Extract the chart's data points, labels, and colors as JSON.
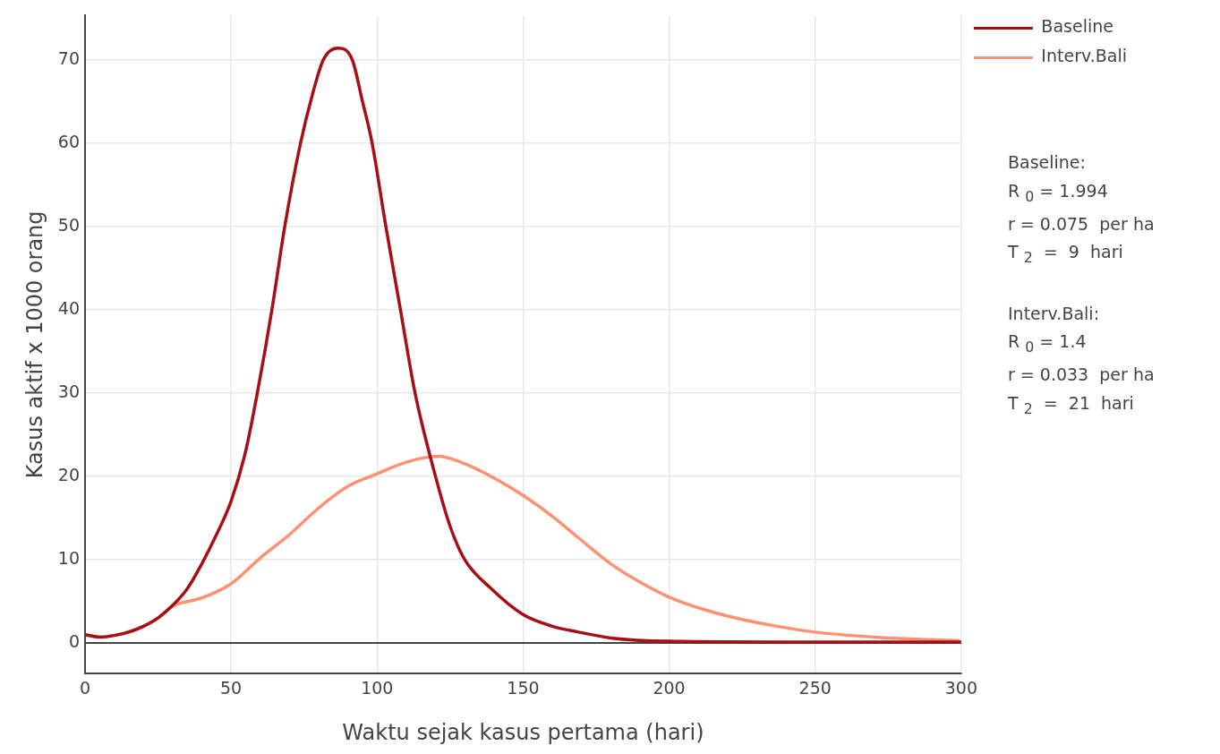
{
  "chart_data": {
    "type": "line",
    "xlabel": "Waktu sejak kasus pertama (hari)",
    "ylabel": "Kasus aktif x 1000 orang",
    "xlim": [
      0,
      300
    ],
    "xticks": [
      0,
      50,
      100,
      150,
      200,
      250,
      300
    ],
    "ylim": [
      -3.7,
      75.3
    ],
    "yticks": [
      0,
      10,
      20,
      30,
      40,
      50,
      60,
      70
    ],
    "grid": true,
    "legend": "top right",
    "marker": "none",
    "line_style": "solid",
    "series": [
      {
        "name": "Baseline",
        "color": "#a50f15",
        "x": [
          0,
          5,
          10,
          15,
          20,
          25,
          30,
          35,
          40,
          45,
          50,
          55,
          59,
          64,
          68.4,
          73.8,
          78,
          81.6,
          86.5,
          91.5,
          95,
          98.3,
          103,
          108,
          113,
          120,
          125,
          130,
          138.8,
          150,
          160,
          169,
          180,
          200,
          250,
          300
        ],
        "values": [
          1.0,
          0.7,
          0.9,
          1.3,
          2.0,
          3.0,
          4.5,
          6.5,
          9.5,
          13,
          17,
          23,
          30,
          40,
          50,
          60,
          66,
          70,
          71.4,
          70,
          65,
          60,
          50,
          40,
          30,
          20,
          14,
          10,
          6.6,
          3.4,
          2,
          1.3,
          0.6,
          0.2,
          0.1,
          0.1
        ]
      },
      {
        "name": "Interv.Bali",
        "color": "#fc9272",
        "x": [
          0,
          5,
          10,
          20,
          25,
          30,
          40,
          50,
          60,
          70,
          80,
          90,
          100,
          110,
          121,
          130,
          140,
          150,
          160,
          169,
          180,
          190,
          200,
          212,
          224,
          237,
          250,
          275,
          299
        ],
        "values": [
          1.0,
          0.7,
          0.9,
          2,
          3,
          4.4,
          5.4,
          7.1,
          10.2,
          13,
          16.2,
          18.8,
          20.3,
          21.7,
          22.4,
          21.5,
          19.8,
          17.7,
          15.2,
          12.6,
          9.5,
          7.3,
          5.5,
          4,
          2.9,
          2,
          1.3,
          0.6,
          0.3
        ]
      }
    ],
    "annotations": [
      "Baseline:\nR $_{0}$ = 1.994\nr = 0.075  per ha\nT $_{2}$  =  9  hari",
      "Interv.Bali:\nR $_{0}$ = 1.4\nr = 0.033  per ha\nT $_{2}$  =  21  hari"
    ]
  }
}
